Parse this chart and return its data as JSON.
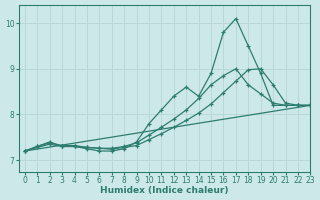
{
  "xlabel": "Humidex (Indice chaleur)",
  "ylabel": "",
  "xlim": [
    -0.5,
    23
  ],
  "ylim": [
    6.75,
    10.4
  ],
  "xticks": [
    0,
    1,
    2,
    3,
    4,
    5,
    6,
    7,
    8,
    9,
    10,
    11,
    12,
    13,
    14,
    15,
    16,
    17,
    18,
    19,
    20,
    21,
    22,
    23
  ],
  "yticks": [
    7,
    8,
    9,
    10
  ],
  "bg_color": "#cde8e8",
  "line_color": "#2d7d6f",
  "grid_color": "#b8d8d8",
  "lines": [
    {
      "x": [
        0,
        1,
        2,
        3,
        4,
        5,
        6,
        7,
        8,
        9,
        10,
        11,
        12,
        13,
        14,
        15,
        16,
        17,
        18,
        19,
        20,
        21,
        22,
        23
      ],
      "y": [
        7.2,
        7.3,
        7.4,
        7.3,
        7.3,
        7.25,
        7.2,
        7.2,
        7.25,
        7.4,
        7.8,
        8.1,
        8.4,
        8.6,
        8.4,
        8.9,
        9.8,
        10.1,
        9.5,
        8.9,
        8.2,
        8.2,
        8.2,
        8.2
      ]
    },
    {
      "x": [
        0,
        1,
        2,
        3,
        4,
        5,
        6,
        7,
        8,
        9,
        10,
        11,
        12,
        13,
        14,
        15,
        16,
        17,
        18,
        19,
        20,
        21,
        22,
        23
      ],
      "y": [
        7.2,
        7.3,
        7.38,
        7.32,
        7.32,
        7.28,
        7.26,
        7.26,
        7.3,
        7.38,
        7.55,
        7.72,
        7.9,
        8.1,
        8.35,
        8.65,
        8.85,
        9.0,
        8.65,
        8.45,
        8.25,
        8.2,
        8.2,
        8.2
      ]
    },
    {
      "x": [
        0,
        1,
        2,
        3,
        4,
        5,
        6,
        7,
        8,
        9,
        10,
        11,
        12,
        13,
        14,
        15,
        16,
        17,
        18,
        19,
        20,
        21,
        22,
        23
      ],
      "y": [
        7.2,
        7.28,
        7.35,
        7.3,
        7.3,
        7.28,
        7.26,
        7.24,
        7.28,
        7.32,
        7.45,
        7.58,
        7.72,
        7.87,
        8.03,
        8.23,
        8.48,
        8.73,
        8.98,
        9.0,
        8.65,
        8.25,
        8.2,
        8.2
      ]
    },
    {
      "x": [
        0,
        23
      ],
      "y": [
        7.2,
        8.2
      ]
    }
  ]
}
